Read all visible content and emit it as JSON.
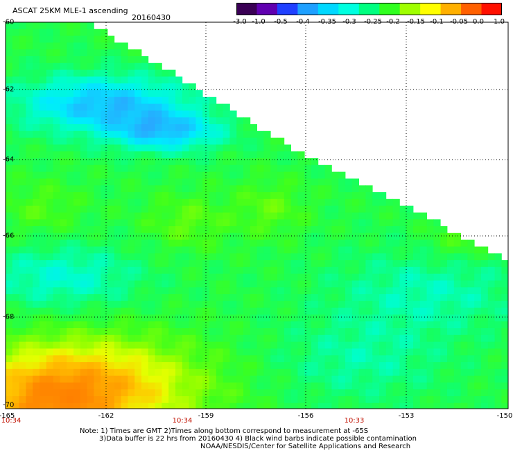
{
  "header": {
    "title": "ASCAT 25KM MLE-1 ascending",
    "date": "20160430"
  },
  "colorbar": {
    "labels": [
      "-3.0",
      "-1.0",
      "-0.5",
      "-0.4",
      "-0.35",
      "-0.3",
      "-0.25",
      "-0.2",
      "-0.15",
      "-0.1",
      "-0.05",
      "0.0",
      "1.0"
    ],
    "colors": [
      "#3a0055",
      "#6000b0",
      "#2040ff",
      "#1ea0ff",
      "#00d8ff",
      "#00ffe0",
      "#00ff80",
      "#30ff20",
      "#a0ff00",
      "#ffff00",
      "#ffb000",
      "#ff6000",
      "#ff1000"
    ]
  },
  "axes": {
    "lat_labels": [
      "-60",
      "-62",
      "-64",
      "-66",
      "-68",
      "-70"
    ],
    "lon_labels": [
      "-165",
      "-162",
      "-159",
      "-156",
      "-153",
      "-150"
    ],
    "time_labels": [
      "10:34",
      "10:34",
      "10:33"
    ]
  },
  "notes": {
    "line1": "Note: 1) Times are GMT 2)Times along bottom correspond to measurement at -65S",
    "line2": "3)Data buffer is 22 hrs from 20160430 4) Black wind barbs indicate possible contamination",
    "line3": "NOAA/NESDIS/Center for Satellite Applications and Research"
  },
  "map": {
    "colors": {
      "background": "#ffffff",
      "grid": "#000000"
    }
  }
}
